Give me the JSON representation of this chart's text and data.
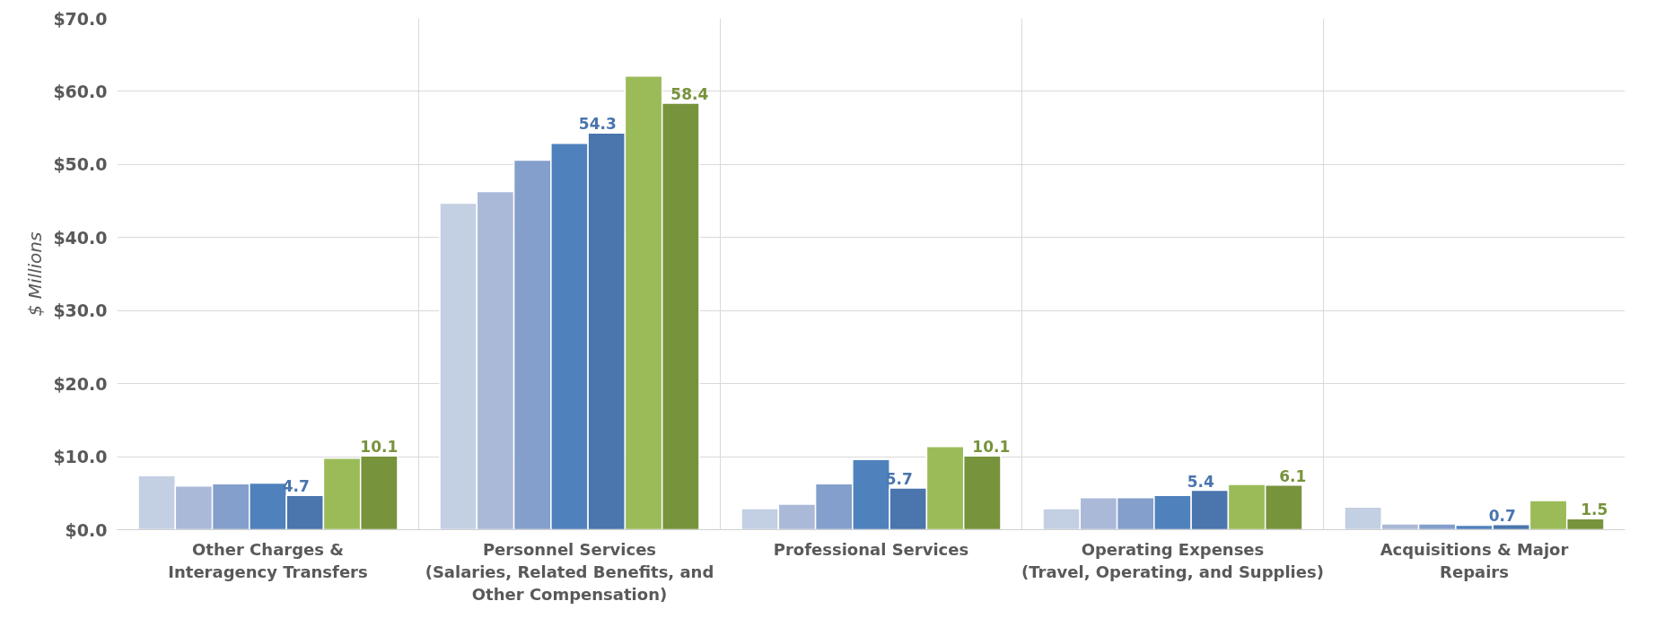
{
  "chart_data": {
    "type": "bar",
    "ylabel": "$ Millions",
    "categories": [
      "Other Charges &\nInteragency Transfers",
      "Personnel Services\n(Salaries, Related Benefits, and\nOther Compensation)",
      "Professional Services",
      "Operating Expenses\n(Travel, Operating, and Supplies)",
      "Acquisitions & Major\nRepairs"
    ],
    "series": [
      {
        "color": "#c3cfe2",
        "values": [
          7.4,
          44.7,
          2.9,
          2.9,
          3.1
        ]
      },
      {
        "color": "#aab9d8",
        "values": [
          6.0,
          46.3,
          3.5,
          4.4,
          0.8
        ]
      },
      {
        "color": "#849fcb",
        "values": [
          6.3,
          50.6,
          6.3,
          4.4,
          0.8
        ]
      },
      {
        "color": "#4f81bd",
        "values": [
          6.4,
          52.9,
          9.6,
          4.7,
          0.6
        ]
      },
      {
        "color": "#4a75ad",
        "values": [
          4.7,
          54.3,
          5.7,
          5.4,
          0.7
        ],
        "value_labels": [
          "4.7",
          "54.3",
          "5.7",
          "5.4",
          "0.7"
        ]
      },
      {
        "color": "#9bbb59",
        "values": [
          9.8,
          62.1,
          11.4,
          6.2,
          4.0
        ]
      },
      {
        "color": "#77933c",
        "values": [
          10.1,
          58.4,
          10.1,
          6.1,
          1.5
        ],
        "value_labels": [
          "10.1",
          "58.4",
          "10.1",
          "6.1",
          "1.5"
        ]
      }
    ],
    "ylim": [
      0,
      70
    ],
    "yticks": [
      {
        "value": 0,
        "label": "$0.0"
      },
      {
        "value": 10,
        "label": "$10.0"
      },
      {
        "value": 20,
        "label": "$20.0"
      },
      {
        "value": 30,
        "label": "$30.0"
      },
      {
        "value": 40,
        "label": "$40.0"
      },
      {
        "value": 50,
        "label": "$50.0"
      },
      {
        "value": 60,
        "label": "$60.0"
      },
      {
        "value": 70,
        "label": "$70.0"
      }
    ],
    "grid": true
  }
}
